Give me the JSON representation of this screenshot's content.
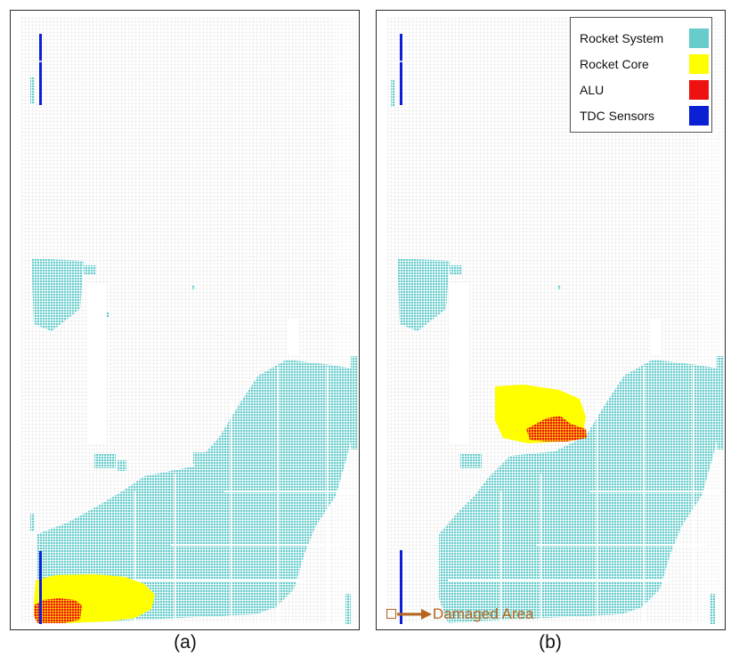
{
  "panels": [
    {
      "caption": "(a)"
    },
    {
      "caption": "(b)"
    }
  ],
  "legend": {
    "items": [
      {
        "label": "Rocket System",
        "color": "#66cccc"
      },
      {
        "label": "Rocket Core",
        "color": "#ffff00"
      },
      {
        "label": "ALU",
        "color": "#ee1111"
      },
      {
        "label": "TDC Sensors",
        "color": "#0b1fd4"
      }
    ]
  },
  "annotation": {
    "damaged_label": "Damaged Area",
    "color": "#b5651d"
  }
}
